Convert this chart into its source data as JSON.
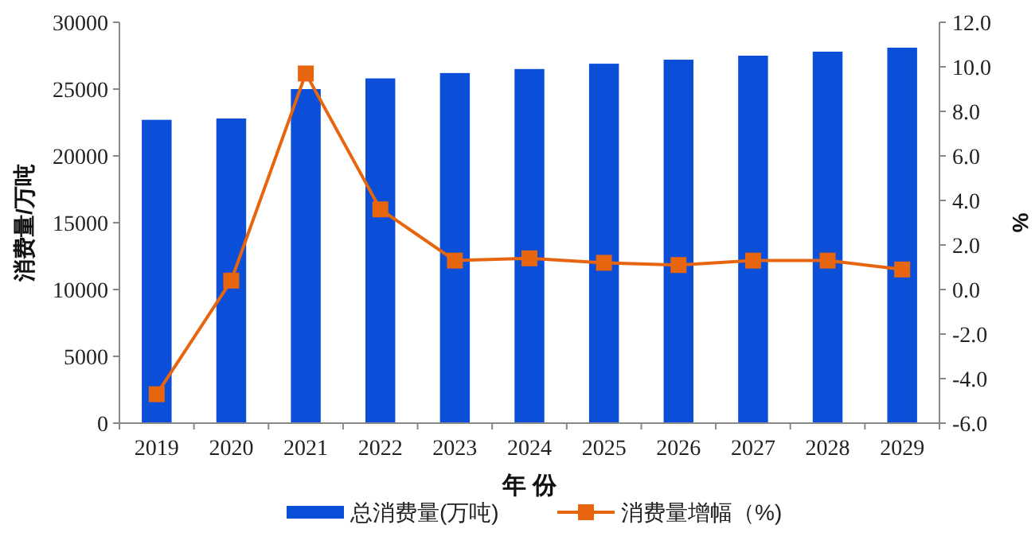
{
  "chart_data": {
    "type": "bar",
    "xlabel": "年 份",
    "ylabel": "消费量/万吨",
    "y2label": "%",
    "categories": [
      "2019",
      "2020",
      "2021",
      "2022",
      "2023",
      "2024",
      "2025",
      "2026",
      "2027",
      "2028",
      "2029"
    ],
    "series": [
      {
        "name": "总消费量(万吨)",
        "color": "#0b4ed8",
        "values": [
          22700,
          22800,
          25000,
          25800,
          26200,
          26500,
          26900,
          27200,
          27500,
          27800,
          28100
        ]
      },
      {
        "name": "消费量增幅（%)",
        "type": "line",
        "axis": "y2",
        "color": "#e8650f",
        "marker": "square",
        "values": [
          -4.7,
          0.4,
          9.7,
          3.6,
          1.3,
          1.4,
          1.2,
          1.1,
          1.3,
          1.3,
          0.9
        ]
      }
    ],
    "ylim": [
      0,
      30000
    ],
    "yticks": [
      0,
      5000,
      10000,
      15000,
      20000,
      25000,
      30000
    ],
    "y2lim": [
      -6,
      12
    ],
    "y2ticks": [
      {
        "value": -6,
        "label": "-6.0"
      },
      {
        "value": -4,
        "label": "-4.0"
      },
      {
        "value": -2,
        "label": "-2.0"
      },
      {
        "value": 0,
        "label": "0.0"
      },
      {
        "value": 2,
        "label": "2.0"
      },
      {
        "value": 4,
        "label": "4.0"
      },
      {
        "value": 6,
        "label": "6.0"
      },
      {
        "value": 8,
        "label": "8.0"
      },
      {
        "value": 10,
        "label": "10.0"
      },
      {
        "value": 12,
        "label": "12.0"
      }
    ],
    "grid": false,
    "legend": "bottom"
  }
}
